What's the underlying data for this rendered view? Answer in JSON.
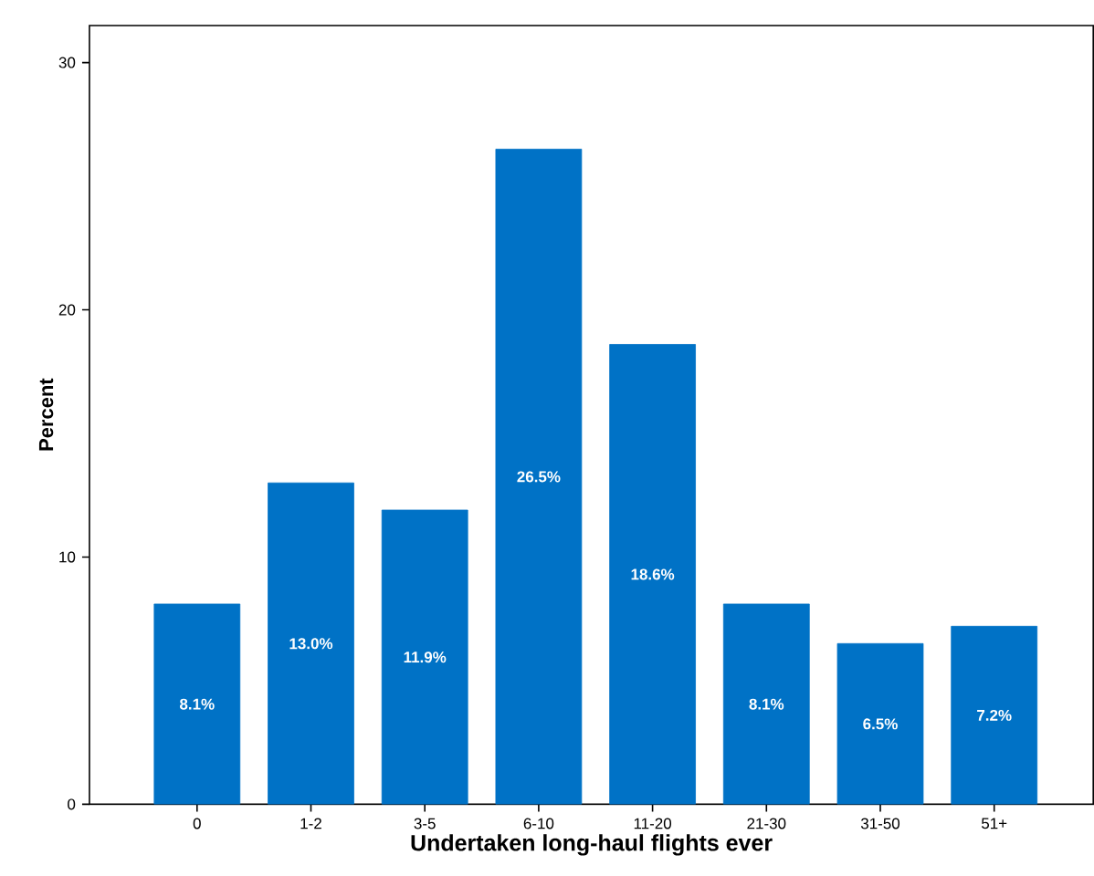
{
  "chart_data": {
    "type": "bar",
    "xlabel": "Undertaken long-haul flights ever",
    "ylabel": "Percent",
    "categories": [
      "0",
      "1-2",
      "3-5",
      "6-10",
      "11-20",
      "21-30",
      "31-50",
      "51+"
    ],
    "values": [
      8.1,
      13.0,
      11.9,
      26.5,
      18.6,
      8.1,
      6.5,
      7.2
    ],
    "value_labels": [
      "8.1%",
      "13.0%",
      "11.9%",
      "26.5%",
      "18.6%",
      "8.1%",
      "6.5%",
      "7.2%"
    ],
    "color": "#0072c6",
    "ylim": [
      0,
      31.5
    ],
    "yticks": [
      0,
      10,
      20,
      30
    ]
  }
}
